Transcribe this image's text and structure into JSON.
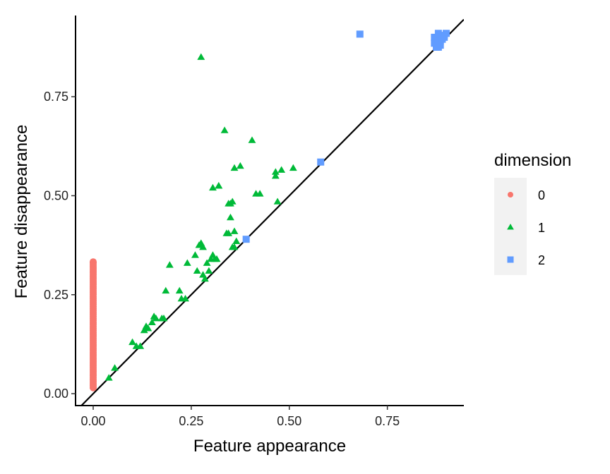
{
  "chart_data": {
    "type": "scatter",
    "title": "",
    "xlabel": "Feature appearance",
    "ylabel": "Feature disappearance",
    "xlim": [
      -0.045,
      0.945
    ],
    "ylim": [
      -0.03,
      0.955
    ],
    "xticks": [
      0.0,
      0.25,
      0.5,
      0.75
    ],
    "xtick_labels": [
      "0.00",
      "0.25",
      "0.50",
      "0.75"
    ],
    "yticks": [
      0.0,
      0.25,
      0.5,
      0.75
    ],
    "ytick_labels": [
      "0.00",
      "0.25",
      "0.50",
      "0.75"
    ],
    "grid": false,
    "reference_line": "y = x",
    "legend": {
      "title": "dimension",
      "position": "right",
      "entries": [
        {
          "label": "0",
          "shape": "circle",
          "color": "#F8766D"
        },
        {
          "label": "1",
          "shape": "triangle",
          "color": "#00BA38"
        },
        {
          "label": "2",
          "shape": "square",
          "color": "#619CFF"
        }
      ]
    },
    "series": [
      {
        "name": "0",
        "shape": "circle",
        "color": "#F8766D",
        "x": [
          0,
          0,
          0,
          0,
          0,
          0,
          0,
          0,
          0,
          0,
          0,
          0,
          0,
          0,
          0,
          0,
          0,
          0,
          0,
          0,
          0,
          0,
          0,
          0,
          0,
          0,
          0,
          0,
          0,
          0,
          0,
          0,
          0,
          0,
          0,
          0,
          0,
          0,
          0,
          0,
          0,
          0,
          0,
          0,
          0,
          0,
          0,
          0,
          0,
          0,
          0,
          0,
          0,
          0,
          0,
          0,
          0,
          0,
          0,
          0,
          0,
          0,
          0,
          0,
          0
        ],
        "y": [
          0.015,
          0.02,
          0.025,
          0.03,
          0.035,
          0.04,
          0.045,
          0.05,
          0.055,
          0.06,
          0.065,
          0.07,
          0.075,
          0.08,
          0.085,
          0.09,
          0.095,
          0.1,
          0.105,
          0.11,
          0.115,
          0.12,
          0.125,
          0.13,
          0.135,
          0.14,
          0.145,
          0.15,
          0.155,
          0.16,
          0.165,
          0.17,
          0.175,
          0.18,
          0.185,
          0.19,
          0.195,
          0.2,
          0.205,
          0.21,
          0.215,
          0.22,
          0.225,
          0.23,
          0.235,
          0.24,
          0.245,
          0.25,
          0.255,
          0.26,
          0.265,
          0.27,
          0.275,
          0.28,
          0.285,
          0.29,
          0.295,
          0.3,
          0.305,
          0.31,
          0.315,
          0.32,
          0.325,
          0.33,
          0.333
        ]
      },
      {
        "name": "1",
        "shape": "triangle",
        "color": "#00BA38",
        "x": [
          0.04,
          0.055,
          0.1,
          0.11,
          0.12,
          0.13,
          0.135,
          0.14,
          0.15,
          0.155,
          0.16,
          0.175,
          0.185,
          0.18,
          0.195,
          0.22,
          0.225,
          0.235,
          0.24,
          0.26,
          0.265,
          0.27,
          0.275,
          0.28,
          0.28,
          0.285,
          0.29,
          0.295,
          0.3,
          0.305,
          0.31,
          0.315,
          0.32,
          0.345,
          0.35,
          0.355,
          0.36,
          0.365,
          0.34,
          0.35,
          0.36,
          0.355,
          0.345,
          0.305,
          0.32,
          0.335,
          0.36,
          0.375,
          0.405,
          0.415,
          0.425,
          0.465,
          0.465,
          0.48,
          0.51,
          0.47,
          0.275
        ],
        "y": [
          0.04,
          0.065,
          0.13,
          0.12,
          0.12,
          0.16,
          0.17,
          0.165,
          0.18,
          0.195,
          0.19,
          0.19,
          0.26,
          0.19,
          0.325,
          0.26,
          0.24,
          0.24,
          0.33,
          0.35,
          0.31,
          0.375,
          0.38,
          0.37,
          0.3,
          0.29,
          0.33,
          0.31,
          0.34,
          0.35,
          0.34,
          0.34,
          0.525,
          0.48,
          0.48,
          0.485,
          0.37,
          0.385,
          0.405,
          0.445,
          0.41,
          0.37,
          0.405,
          0.52,
          0.525,
          0.665,
          0.57,
          0.575,
          0.64,
          0.505,
          0.505,
          0.55,
          0.56,
          0.565,
          0.57,
          0.485,
          0.85
        ]
      },
      {
        "name": "2",
        "shape": "square",
        "color": "#619CFF",
        "x": [
          0.39,
          0.58,
          0.68,
          0.87,
          0.875,
          0.88,
          0.885,
          0.89,
          0.895,
          0.9,
          0.87,
          0.875,
          0.88,
          0.885,
          0.89,
          0.88,
          0.875,
          0.885,
          0.89,
          0.895,
          0.88
        ],
        "y": [
          0.39,
          0.585,
          0.908,
          0.9,
          0.895,
          0.89,
          0.895,
          0.9,
          0.905,
          0.91,
          0.885,
          0.88,
          0.885,
          0.89,
          0.9,
          0.875,
          0.875,
          0.88,
          0.895,
          0.9,
          0.91
        ]
      }
    ]
  }
}
